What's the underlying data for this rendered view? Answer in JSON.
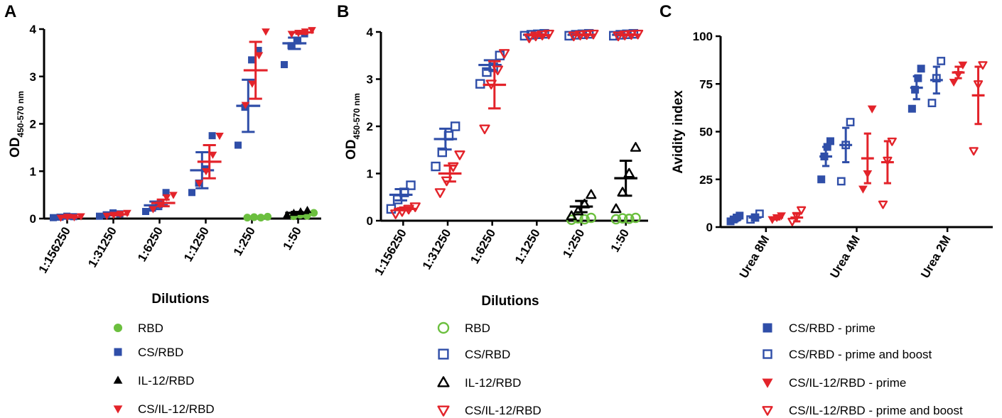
{
  "colors": {
    "RBD": "#6bbf3e",
    "CS/RBD": "#2f4ea8",
    "IL-12/RBD": "#000000",
    "CS/IL-12/RBD": "#e3232a",
    "axis": "#000000"
  },
  "chart_data": [
    {
      "panel": "A",
      "type": "scatter",
      "xlabel": "Dilutions",
      "ylabel_main": "OD",
      "ylabel_sub": "450-570 nm",
      "ylim": [
        0,
        4
      ],
      "yticks": [
        "0",
        "1",
        "2",
        "3",
        "4"
      ],
      "categories": [
        "1:156250",
        "1:31250",
        "1:6250",
        "1:1250",
        "1:250",
        "1:50"
      ],
      "series": [
        {
          "name": "RBD",
          "marker": "circle",
          "filled": true,
          "colorKey": "RBD",
          "offset": 0.12,
          "values": [
            [],
            [],
            [],
            [],
            [
              0.02,
              0.03,
              0.02,
              0.04
            ],
            [
              0.05,
              0.08,
              0.06,
              0.12
            ]
          ],
          "mean": [
            null,
            null,
            null,
            null,
            0.03,
            0.08
          ],
          "sem": [
            null,
            null,
            null,
            null,
            0.01,
            0.02
          ]
        },
        {
          "name": "CS/RBD",
          "marker": "square",
          "filled": true,
          "colorKey": "CS/RBD",
          "offset": -0.08,
          "values": [
            [
              0.02,
              0.03,
              0.05,
              0.04
            ],
            [
              0.05,
              0.08,
              0.12,
              0.1
            ],
            [
              0.15,
              0.22,
              0.3,
              0.55
            ],
            [
              0.55,
              0.75,
              1.05,
              1.75
            ],
            [
              1.55,
              2.35,
              3.35,
              3.55
            ],
            [
              3.25,
              3.65,
              3.75,
              3.9
            ]
          ],
          "mean": [
            0.04,
            0.09,
            0.28,
            1.02,
            2.38,
            3.7
          ],
          "sem": [
            0.01,
            0.02,
            0.08,
            0.38,
            0.55,
            0.12
          ]
        },
        {
          "name": "IL-12/RBD",
          "marker": "triangle-up",
          "filled": true,
          "colorKey": "IL-12/RBD",
          "offset": -0.02,
          "values": [
            [],
            [],
            [],
            [],
            [],
            [
              0.08,
              0.12,
              0.15,
              0.18
            ]
          ],
          "mean": [
            null,
            null,
            null,
            null,
            null,
            0.12
          ],
          "sem": [
            null,
            null,
            null,
            null,
            null,
            0.02
          ]
        },
        {
          "name": "CS/IL-12/RBD",
          "marker": "triangle-down",
          "filled": true,
          "colorKey": "CS/IL-12/RBD",
          "offset": 0.08,
          "values": [
            [
              0.02,
              0.04,
              0.03,
              0.05
            ],
            [
              0.06,
              0.08,
              0.1,
              0.12
            ],
            [
              0.2,
              0.3,
              0.45,
              0.5
            ],
            [
              0.75,
              1.0,
              1.35,
              1.75
            ],
            [
              2.4,
              2.85,
              3.45,
              3.95
            ],
            [
              3.9,
              3.92,
              3.95,
              3.98
            ]
          ],
          "mean": [
            0.03,
            0.09,
            0.33,
            1.2,
            3.13,
            3.93
          ],
          "sem": [
            0.01,
            0.02,
            0.07,
            0.35,
            0.6,
            0.03
          ]
        }
      ],
      "legend": [
        "RBD",
        "CS/RBD",
        "IL-12/RBD",
        "CS/IL-12/RBD"
      ]
    },
    {
      "panel": "B",
      "type": "scatter",
      "xlabel": "Dilutions",
      "ylabel_main": "OD",
      "ylabel_sub": "450-570 nm",
      "ylim": [
        0,
        4
      ],
      "yticks": [
        "0",
        "1",
        "2",
        "3",
        "4"
      ],
      "categories": [
        "1:156250",
        "1:31250",
        "1:6250",
        "1:1250",
        "1:250",
        "1:50"
      ],
      "series": [
        {
          "name": "RBD",
          "marker": "circle",
          "filled": false,
          "colorKey": "RBD",
          "offset": 0.0,
          "values": [
            [],
            [],
            [],
            [],
            [
              0.02,
              0.05,
              0.03,
              0.06
            ],
            [
              0.03,
              0.05,
              0.04,
              0.06
            ]
          ],
          "mean": [
            null,
            null,
            null,
            null,
            null,
            null
          ],
          "sem": [
            null,
            null,
            null,
            null,
            null,
            null
          ]
        },
        {
          "name": "CS/RBD",
          "marker": "square",
          "filled": false,
          "colorKey": "CS/RBD",
          "offset": -0.05,
          "values": [
            [
              0.25,
              0.45,
              0.6,
              0.75
            ],
            [
              1.15,
              1.45,
              1.8,
              2.0
            ],
            [
              2.9,
              3.15,
              3.25,
              3.5
            ],
            [
              3.92,
              3.94,
              3.95,
              3.96
            ],
            [
              3.92,
              3.94,
              3.95,
              3.96
            ],
            [
              3.92,
              3.94,
              3.95,
              3.96
            ]
          ],
          "mean": [
            0.55,
            1.73,
            3.3,
            3.94,
            3.94,
            3.94
          ],
          "sem": [
            0.12,
            0.22,
            0.1,
            0.01,
            0.01,
            0.01
          ]
        },
        {
          "name": "IL-12/RBD",
          "marker": "triangle-up",
          "filled": false,
          "colorKey": "IL-12/RBD",
          "offset": 0.0,
          "values": [
            [],
            [],
            [],
            [],
            [
              0.1,
              0.2,
              0.35,
              0.55
            ],
            [
              0.25,
              0.6,
              1.0,
              1.55
            ]
          ],
          "mean": [
            null,
            null,
            null,
            null,
            0.3,
            0.9
          ],
          "sem": [
            null,
            null,
            null,
            null,
            0.12,
            0.37
          ]
        },
        {
          "name": "CS/IL-12/RBD",
          "marker": "triangle-down",
          "filled": false,
          "colorKey": "CS/IL-12/RBD",
          "offset": 0.05,
          "values": [
            [
              0.15,
              0.2,
              0.25,
              0.3
            ],
            [
              0.6,
              0.85,
              1.15,
              1.4
            ],
            [
              1.95,
              2.9,
              3.2,
              3.55
            ],
            [
              3.88,
              3.92,
              3.94,
              3.96
            ],
            [
              3.92,
              3.94,
              3.95,
              3.96
            ],
            [
              3.92,
              3.94,
              3.95,
              3.96
            ]
          ],
          "mean": [
            0.25,
            1.0,
            2.88,
            3.93,
            3.94,
            3.94
          ],
          "sem": [
            0.03,
            0.17,
            0.5,
            0.02,
            0.01,
            0.01
          ]
        }
      ],
      "legend": [
        "RBD",
        "CS/RBD",
        "IL-12/RBD",
        "CS/IL-12/RBD"
      ]
    },
    {
      "panel": "C",
      "type": "scatter",
      "xlabel": "",
      "ylabel_main": "Avidity index",
      "ylabel_sub": "",
      "ylim": [
        0,
        100
      ],
      "yticks": [
        "0",
        "25",
        "50",
        "75",
        "100"
      ],
      "categories": [
        "Urea 8M",
        "Urea 4M",
        "Urea 2M"
      ],
      "series": [
        {
          "name": "CS/RBD - prime",
          "marker": "square",
          "filled": true,
          "colorKey": "CS/RBD",
          "offset": -0.34,
          "values": [
            [
              3,
              4,
              5,
              6
            ],
            [
              25,
              37,
              42,
              45
            ],
            [
              62,
              72,
              78,
              83
            ]
          ],
          "mean": [
            4,
            37,
            73
          ],
          "sem": [
            1,
            5,
            6
          ]
        },
        {
          "name": "CS/RBD - prime and boost",
          "marker": "square",
          "filled": false,
          "colorKey": "CS/RBD",
          "offset": -0.12,
          "values": [
            [
              4,
              5,
              7
            ],
            [
              24,
              43,
              55
            ],
            [
              65,
              78,
              87
            ]
          ],
          "mean": [
            5,
            43,
            77
          ],
          "sem": [
            1,
            9,
            7
          ]
        },
        {
          "name": "CS/IL-12/RBD - prime",
          "marker": "triangle-down",
          "filled": true,
          "colorKey": "CS/IL-12/RBD",
          "offset": 0.12,
          "values": [
            [
              4,
              5,
              6
            ],
            [
              20,
              28,
              62
            ],
            [
              76,
              80,
              85
            ]
          ],
          "mean": [
            5,
            36,
            81
          ],
          "sem": [
            1,
            13,
            3
          ]
        },
        {
          "name": "CS/IL-12/RBD - prime and boost",
          "marker": "triangle-down",
          "filled": false,
          "colorKey": "CS/IL-12/RBD",
          "offset": 0.34,
          "values": [
            [
              3,
              6,
              9
            ],
            [
              12,
              35,
              45
            ],
            [
              40,
              75,
              85
            ]
          ],
          "mean": [
            5,
            34,
            69
          ],
          "sem": [
            2,
            11,
            15
          ]
        }
      ],
      "legend": [
        "CS/RBD - prime",
        "CS/RBD - prime and boost",
        "CS/IL-12/RBD - prime",
        "CS/IL-12/RBD - prime and boost"
      ]
    }
  ]
}
